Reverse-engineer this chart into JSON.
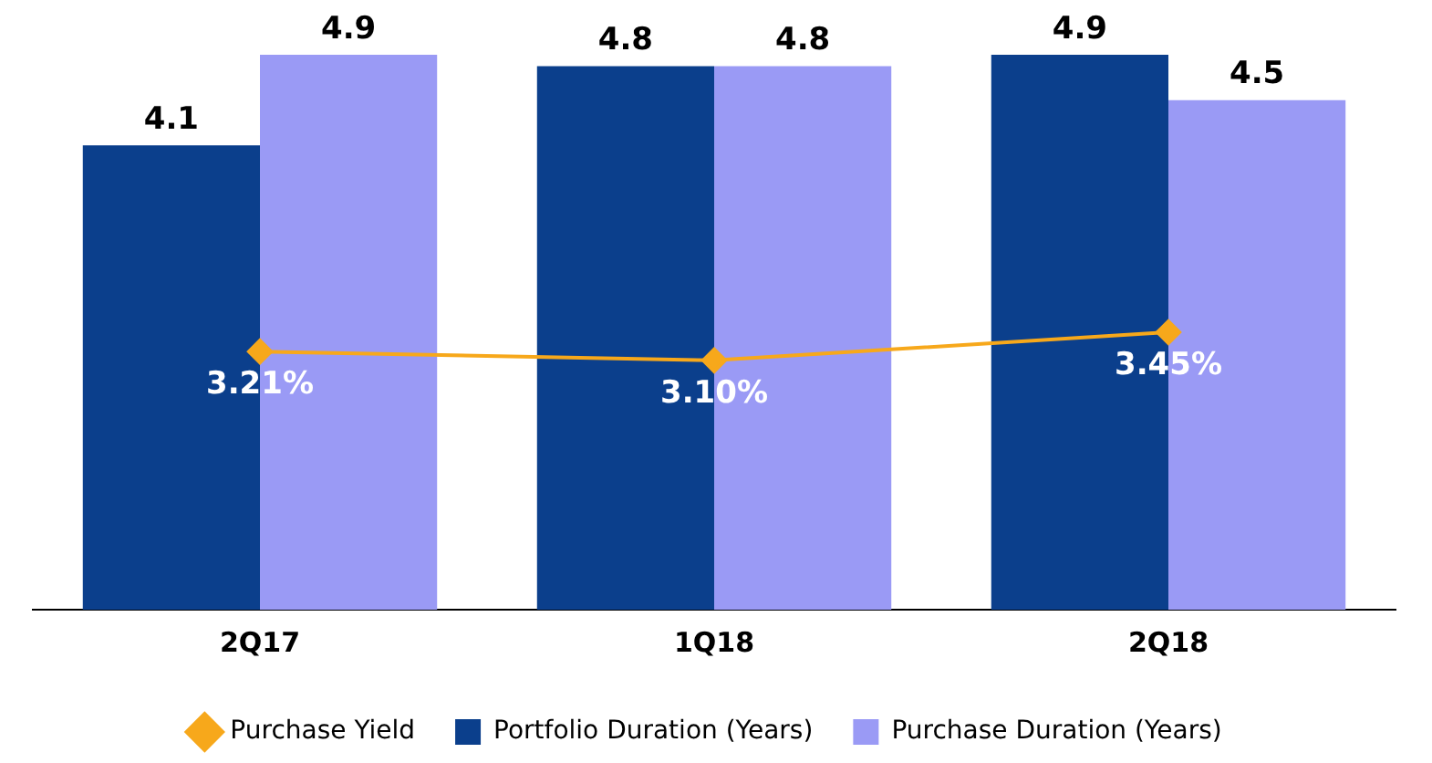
{
  "chart_data": {
    "type": "bar",
    "categories": [
      "2Q17",
      "1Q18",
      "2Q18"
    ],
    "series": [
      {
        "name": "Portfolio Duration (Years)",
        "color": "#0b3f8c",
        "values": [
          4.1,
          4.8,
          4.9
        ],
        "value_labels": [
          "4.1",
          "4.8",
          "4.9"
        ]
      },
      {
        "name": "Purchase Duration (Years)",
        "color": "#9a9af5",
        "values": [
          4.9,
          4.8,
          4.5
        ],
        "value_labels": [
          "4.9",
          "4.8",
          "4.5"
        ]
      },
      {
        "name": "Purchase Yield",
        "type": "line",
        "axis": "y2",
        "color": "#f7a81b",
        "marker": "diamond",
        "values": [
          3.21,
          3.1,
          3.45
        ],
        "value_labels": [
          "3.21%",
          "3.10%",
          "3.45%"
        ]
      }
    ],
    "grid": false,
    "legend": "bottom"
  }
}
